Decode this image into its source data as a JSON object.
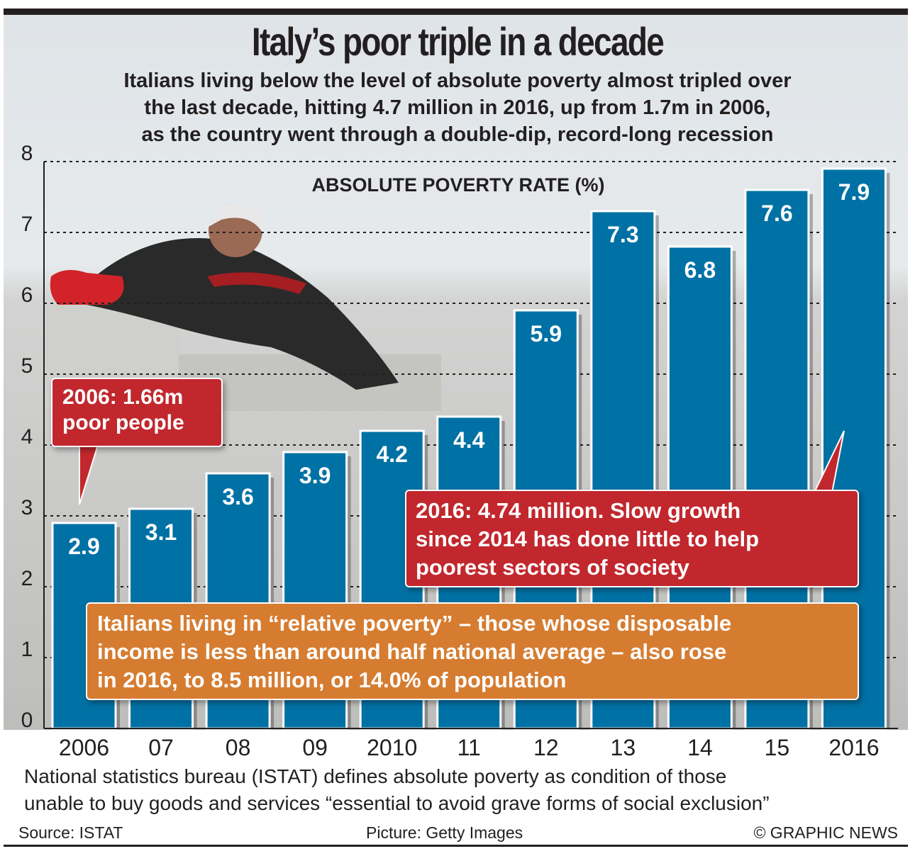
{
  "title": "Italy’s poor triple in a decade",
  "subtitle_lines": [
    "Italians living below the level of absolute poverty almost tripled over",
    "the last decade, hitting 4.7 million in 2016, up from 1.7m in 2006,",
    "as the country went through a double-dip, record-long recession"
  ],
  "chart_data": {
    "type": "bar",
    "title": "ABSOLUTE POVERTY RATE (%)",
    "categories": [
      "2006",
      "07",
      "08",
      "09",
      "2010",
      "11",
      "12",
      "13",
      "14",
      "15",
      "2016"
    ],
    "values": [
      2.9,
      3.1,
      3.6,
      3.9,
      4.2,
      4.4,
      5.9,
      7.3,
      6.8,
      7.6,
      7.9
    ],
    "data_labels": [
      "2.9",
      "3.1",
      "3.6",
      "3.9",
      "4.2",
      "4.4",
      "5.9",
      "7.3",
      "6.8",
      "7.6",
      "7.9"
    ],
    "xlabel": "",
    "ylabel": "",
    "ylim": [
      0,
      8
    ],
    "yticks": [
      "0",
      "1",
      "2",
      "3",
      "4",
      "5",
      "6",
      "7",
      "8"
    ],
    "grid": "dotted horizontal",
    "bar_color": "#0071a4",
    "annotations": [
      {
        "target": "2006",
        "text_lines": [
          "2006: 1.66m",
          "poor people"
        ],
        "color": "#c1272d"
      },
      {
        "target": "2016",
        "text_lines": [
          "2016: 4.74 million. Slow growth",
          "since 2014 has done little to help",
          "poorest sectors of society"
        ],
        "color": "#c1272d"
      },
      {
        "target": "none",
        "text_lines": [
          "Italians living in “relative poverty” – those whose disposable",
          "income is less than around half national average – also rose",
          "in 2016, to 8.5 million, or 14.0% of population"
        ],
        "color": "#d67c30"
      }
    ]
  },
  "footnote_lines": [
    "National statistics bureau (ISTAT) defines absolute poverty as condition of those",
    "unable to buy goods and services “essential to avoid grave forms of social exclusion”"
  ],
  "credits": {
    "source": "Source: ISTAT",
    "picture": "Picture: Getty Images",
    "copyright": "© GRAPHIC NEWS"
  }
}
